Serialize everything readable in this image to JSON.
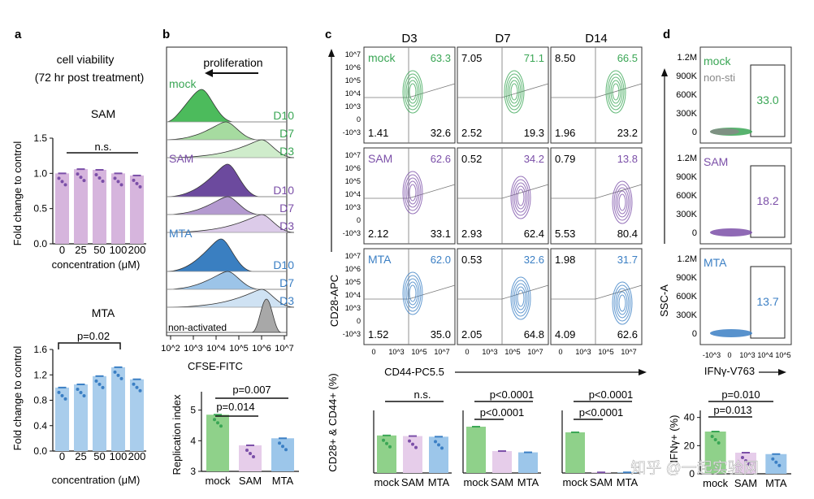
{
  "panel_letters": [
    "a",
    "b",
    "c",
    "d"
  ],
  "colors": {
    "mock": "#3aa655",
    "sam": "#7b4fa8",
    "mta": "#3b7fc4",
    "grey": "#888888",
    "bar_a_sam": "#d6b5dd",
    "bar_a_mta": "#a9cdec",
    "bar_mock": "#8fd18a",
    "bar_sam": "#e6cdea",
    "bar_mta": "#9cc6ea"
  },
  "panel_a": {
    "title_line1": "cell viability",
    "title_line2": "(72 hr post treatment)",
    "ylabel": "Fold change to control",
    "xlabel": "concentration (μM)",
    "x_ticks": [
      "0",
      "25",
      "50",
      "100",
      "200"
    ],
    "charts": [
      {
        "title": "SAM",
        "sig": "n.s.",
        "y_ticks": [
          "0.0",
          "0.5",
          "1.0",
          "1.5"
        ],
        "ylim": [
          0,
          1.5
        ]
      },
      {
        "title": "MTA",
        "sig": "p=0.02",
        "y_ticks": [
          "0.0",
          "0.4",
          "0.8",
          "1.2",
          "1.6"
        ],
        "ylim": [
          0,
          1.6
        ]
      }
    ]
  },
  "panel_b": {
    "arrow_label": "proliferation",
    "groups": [
      {
        "name": "mock",
        "days": [
          "D10",
          "D7",
          "D3"
        ]
      },
      {
        "name": "SAM",
        "days": [
          "D10",
          "D7",
          "D3"
        ]
      },
      {
        "name": "MTA",
        "days": [
          "D10",
          "D7",
          "D3"
        ]
      }
    ],
    "nonactivated": "non-activated",
    "xlabel": "CFSE-FITC",
    "x_ticks": [
      "10^2",
      "10^3",
      "10^4",
      "10^5",
      "10^6",
      "10^7"
    ],
    "replication": {
      "ylabel": "Replication index",
      "p1": "p=0.007",
      "p2": "p=0.014",
      "y_ticks": [
        "3",
        "4",
        "5"
      ],
      "categories": [
        "mock",
        "SAM",
        "MTA"
      ]
    }
  },
  "panel_c": {
    "days": [
      "D3",
      "D7",
      "D14"
    ],
    "ylabel": "CD28-APC",
    "xlabel": "CD44-PC5.5",
    "y_ticks": [
      "10^7",
      "10^6",
      "10^5",
      "10^4",
      "10^3",
      "0",
      "-10^3"
    ],
    "x_ticks": [
      "0",
      "10^3",
      "10^5",
      "10^7"
    ],
    "rows": [
      {
        "name": "mock",
        "quads": [
          [
            "",
            "63.3",
            "1.41",
            "32.6"
          ],
          [
            "7.05",
            "71.1",
            "2.52",
            "19.3"
          ],
          [
            "8.50",
            "66.5",
            "1.96",
            "23.2"
          ]
        ]
      },
      {
        "name": "SAM",
        "quads": [
          [
            "",
            "62.6",
            "2.12",
            "33.1"
          ],
          [
            "0.52",
            "34.2",
            "2.93",
            "62.4"
          ],
          [
            "0.79",
            "13.8",
            "5.53",
            "80.4"
          ]
        ]
      },
      {
        "name": "MTA",
        "quads": [
          [
            "",
            "62.0",
            "1.52",
            "35.0"
          ],
          [
            "0.53",
            "32.6",
            "2.05",
            "64.8"
          ],
          [
            "1.98",
            "31.7",
            "4.09",
            "62.6"
          ]
        ]
      }
    ],
    "bars": {
      "ylabel": "CD28+ & CD44+ (%)",
      "sig": [
        "n.s.",
        "p<0.0001",
        "p<0.0001"
      ],
      "sig2": [
        "",
        "p<0.0001",
        "p<0.0001"
      ],
      "categories": [
        "mock",
        "SAM",
        "MTA"
      ]
    }
  },
  "panel_d": {
    "ylabel": "SSC-A",
    "xlabel": "IFNγ-V763",
    "y_ticks": [
      "1.2M",
      "900K",
      "600K",
      "300K",
      "0"
    ],
    "x_ticks": [
      "-10^3",
      "0",
      "10^3",
      "10^4",
      "10^5"
    ],
    "rows": [
      {
        "name": "mock",
        "extra": "non-sti",
        "value": "33.0"
      },
      {
        "name": "SAM",
        "value": "18.2"
      },
      {
        "name": "MTA",
        "value": "13.7"
      }
    ],
    "bars": {
      "ylabel": "IFNγ+ (%)",
      "p1": "p=0.010",
      "p2": "p=0.013",
      "y_ticks": [
        "0",
        "20",
        "40"
      ],
      "categories": [
        "mock",
        "SAM",
        "MTA"
      ]
    }
  },
  "watermark": "知乎 @一起实验网",
  "chart_data": [
    {
      "type": "bar",
      "title": "SAM",
      "categories": [
        "0",
        "25",
        "50",
        "100",
        "200"
      ],
      "values": [
        1.0,
        1.06,
        1.05,
        1.0,
        0.97
      ],
      "ylim": [
        0,
        1.5
      ],
      "xlabel": "concentration (μM)",
      "ylabel": "Fold change to control"
    },
    {
      "type": "bar",
      "title": "MTA",
      "categories": [
        "0",
        "25",
        "50",
        "100",
        "200"
      ],
      "values": [
        1.0,
        1.05,
        1.18,
        1.32,
        1.13
      ],
      "ylim": [
        0,
        1.6
      ],
      "xlabel": "concentration (μM)",
      "ylabel": "Fold change to control"
    },
    {
      "type": "bar",
      "title": "Replication index",
      "categories": [
        "mock",
        "SAM",
        "MTA"
      ],
      "values": [
        4.85,
        3.85,
        4.08
      ],
      "ylim": [
        3,
        5.6
      ],
      "ylabel": "Replication index"
    },
    {
      "type": "bar",
      "title": "D3",
      "categories": [
        "mock",
        "SAM",
        "MTA"
      ],
      "values": [
        60,
        59,
        58
      ],
      "ylim": [
        0,
        100
      ],
      "ylabel": "CD28+ & CD44+ (%)"
    },
    {
      "type": "bar",
      "title": "D7",
      "categories": [
        "mock",
        "SAM",
        "MTA"
      ],
      "values": [
        74,
        35,
        33
      ],
      "ylim": [
        0,
        100
      ],
      "ylabel": "CD28+ & CD44+ (%)"
    },
    {
      "type": "bar",
      "title": "D14",
      "categories": [
        "mock",
        "SAM",
        "MTA"
      ],
      "values": [
        65,
        1,
        1
      ],
      "ylim": [
        0,
        100
      ],
      "ylabel": "CD28+ & CD44+ (%)"
    },
    {
      "type": "bar",
      "title": "IFNγ+",
      "categories": [
        "mock",
        "SAM",
        "MTA"
      ],
      "values": [
        30,
        15,
        14
      ],
      "ylim": [
        0,
        45
      ],
      "ylabel": "IFNγ+ (%)"
    }
  ]
}
